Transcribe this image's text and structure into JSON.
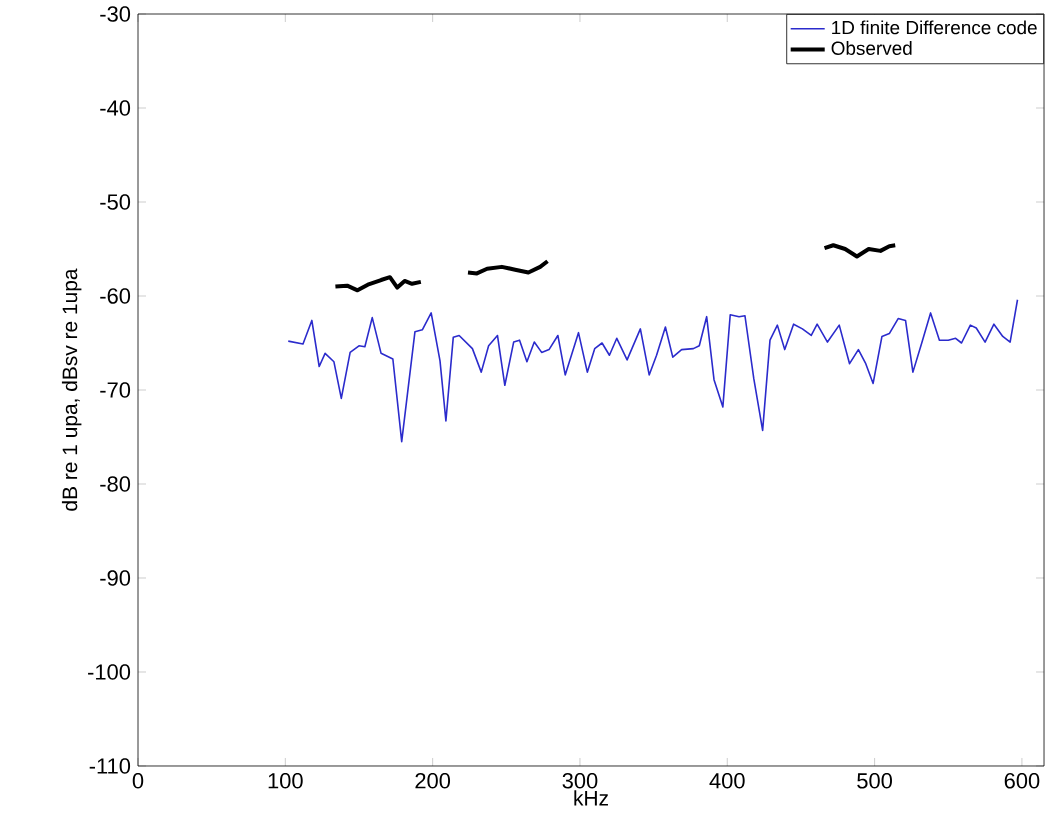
{
  "chart_data": {
    "type": "line",
    "xlabel": "kHz",
    "ylabel": "dB re 1 upa, dBsv re 1upa",
    "xlim": [
      0,
      615
    ],
    "ylim": [
      -110,
      -30
    ],
    "xticks": [
      0,
      100,
      200,
      300,
      400,
      500,
      600
    ],
    "yticks": [
      -110,
      -100,
      -90,
      -80,
      -70,
      -60,
      -50,
      -40,
      -30
    ],
    "legend": "top right",
    "grid": false,
    "marker": "none",
    "line_style": "solid",
    "series": [
      {
        "name": "1D finite Difference code",
        "color": "#2b2bcc",
        "x": [
          102,
          112,
          118,
          123,
          127,
          133,
          138,
          144,
          150,
          154,
          159,
          165,
          173,
          179,
          188,
          193,
          199,
          205,
          209,
          214,
          218,
          227,
          233,
          238,
          244,
          249,
          255,
          259,
          264,
          269,
          274,
          279,
          285,
          290,
          299,
          305,
          310,
          315,
          320,
          325,
          332,
          341,
          347,
          352,
          358,
          363,
          369,
          377,
          381,
          386,
          391,
          397,
          402,
          408,
          412,
          418,
          424,
          429,
          434,
          439,
          445,
          451,
          457,
          461,
          468,
          476,
          483,
          489,
          494,
          499,
          505,
          510,
          516,
          521,
          526,
          532,
          538,
          544,
          550,
          555,
          559,
          565,
          569,
          575,
          581,
          587,
          592,
          597
        ],
        "values": [
          -64.8,
          -65.1,
          -62.6,
          -67.5,
          -66.1,
          -67.0,
          -70.9,
          -66.0,
          -65.3,
          -65.4,
          -62.3,
          -66.1,
          -66.7,
          -75.5,
          -63.8,
          -63.6,
          -61.8,
          -66.9,
          -73.3,
          -64.4,
          -64.2,
          -65.6,
          -68.1,
          -65.3,
          -64.2,
          -69.5,
          -64.9,
          -64.7,
          -67.0,
          -64.9,
          -66.0,
          -65.7,
          -64.2,
          -68.4,
          -63.9,
          -68.1,
          -65.6,
          -65.0,
          -66.3,
          -64.5,
          -66.8,
          -63.5,
          -68.4,
          -66.3,
          -63.3,
          -66.5,
          -65.7,
          -65.6,
          -65.3,
          -62.2,
          -68.9,
          -71.8,
          -62.0,
          -62.2,
          -62.1,
          -68.8,
          -74.3,
          -64.7,
          -63.1,
          -65.7,
          -63.0,
          -63.5,
          -64.2,
          -63.0,
          -64.9,
          -63.1,
          -67.2,
          -65.7,
          -67.2,
          -69.3,
          -64.3,
          -64.0,
          -62.4,
          -62.6,
          -68.1,
          -65.0,
          -61.8,
          -64.7,
          -64.7,
          -64.5,
          -65.0,
          -63.1,
          -63.4,
          -64.9,
          -63.0,
          -64.3,
          -64.9,
          -60.4
        ]
      },
      {
        "name": "Observed",
        "color": "#000000",
        "x": [
          134,
          142,
          149,
          156,
          165,
          171,
          176,
          181,
          186,
          192,
          208,
          224,
          230,
          237,
          247,
          256,
          265,
          273,
          278,
          370,
          466,
          472,
          480,
          488,
          496,
          504,
          510,
          514
        ],
        "values": [
          -59.0,
          -58.9,
          -59.4,
          -58.8,
          -58.3,
          -58.0,
          -59.1,
          -58.4,
          -58.7,
          -58.5,
          null,
          -57.5,
          -57.6,
          -57.1,
          -56.9,
          -57.2,
          -57.5,
          -56.9,
          -56.3,
          null,
          -54.9,
          -54.6,
          -55.0,
          -55.8,
          -55.0,
          -55.2,
          -54.7,
          -54.6
        ]
      }
    ]
  }
}
